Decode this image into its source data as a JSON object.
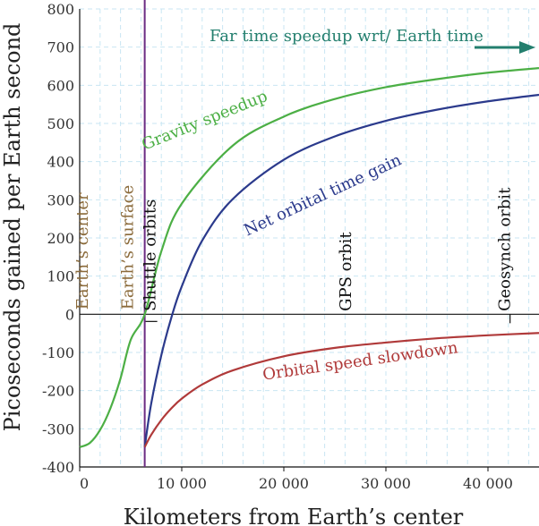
{
  "chart_data": {
    "type": "line",
    "xlabel": "Kilometers from Earth’s center",
    "ylabel": "Picoseconds gained per Earth second",
    "xlim": [
      0,
      45000
    ],
    "ylim": [
      -400,
      800
    ],
    "x_ticks": [
      0,
      10000,
      20000,
      30000,
      40000
    ],
    "x_tick_labels": [
      "0",
      "10 000",
      "20 000",
      "30 000",
      "40 000"
    ],
    "y_ticks": [
      800,
      700,
      600,
      500,
      400,
      300,
      200,
      100,
      0,
      -100,
      -200,
      -300,
      -400
    ],
    "y_tick_labels": [
      "800",
      "700",
      "600",
      "500",
      "400",
      "300",
      "200",
      "100",
      "0",
      "-100",
      "-200",
      "-300",
      "-400"
    ],
    "grid": true,
    "series": [
      {
        "name": "Gravity speedup",
        "color": "#4caf45",
        "x": [
          0,
          1000,
          2000,
          3000,
          4000,
          5000,
          6371,
          8000,
          10000,
          15000,
          20000,
          25000,
          30000,
          35000,
          40000,
          45000
        ],
        "y": [
          -348,
          -337,
          -303,
          -247,
          -168,
          -67,
          0,
          165,
          290,
          442,
          518,
          564,
          595,
          616,
          633,
          645
        ]
      },
      {
        "name": "Net orbital time gain",
        "color": "#2b3a8c",
        "x": [
          6371,
          7000,
          8000,
          9000,
          10000,
          12000,
          15000,
          20000,
          25000,
          30000,
          35000,
          40000,
          45000
        ],
        "y": [
          -348,
          -235,
          -107,
          -7,
          73,
          193,
          302,
          405,
          466,
          507,
          536,
          558,
          575
        ]
      },
      {
        "name": "Orbital speed slowdown",
        "color": "#b03a3a",
        "x": [
          6371,
          7000,
          8000,
          9000,
          10000,
          12000,
          15000,
          20000,
          25000,
          30000,
          35000,
          40000,
          45000
        ],
        "y": [
          -348,
          -316,
          -277,
          -246,
          -221,
          -184,
          -147,
          -110,
          -88,
          -74,
          -63,
          -55,
          -49
        ]
      }
    ],
    "vertical_marker": {
      "x": 6371,
      "color": "#6b2c83"
    },
    "annotations": [
      {
        "text": "Earth’s center",
        "x": 800,
        "color": "#8a6a3a"
      },
      {
        "text": "Earth’s surface",
        "x": 5200,
        "color": "#8a6a3a"
      },
      {
        "text": "Shuttle orbits",
        "x": 7400,
        "color": "#111111"
      },
      {
        "text": "GPS orbit",
        "x": 26600,
        "color": "#111111"
      },
      {
        "text": "Geosynch orbit",
        "x": 42164,
        "color": "#111111"
      }
    ],
    "arrow_label": {
      "text": "Far time speedup wrt/ Earth time",
      "color": "#237f6e"
    }
  }
}
